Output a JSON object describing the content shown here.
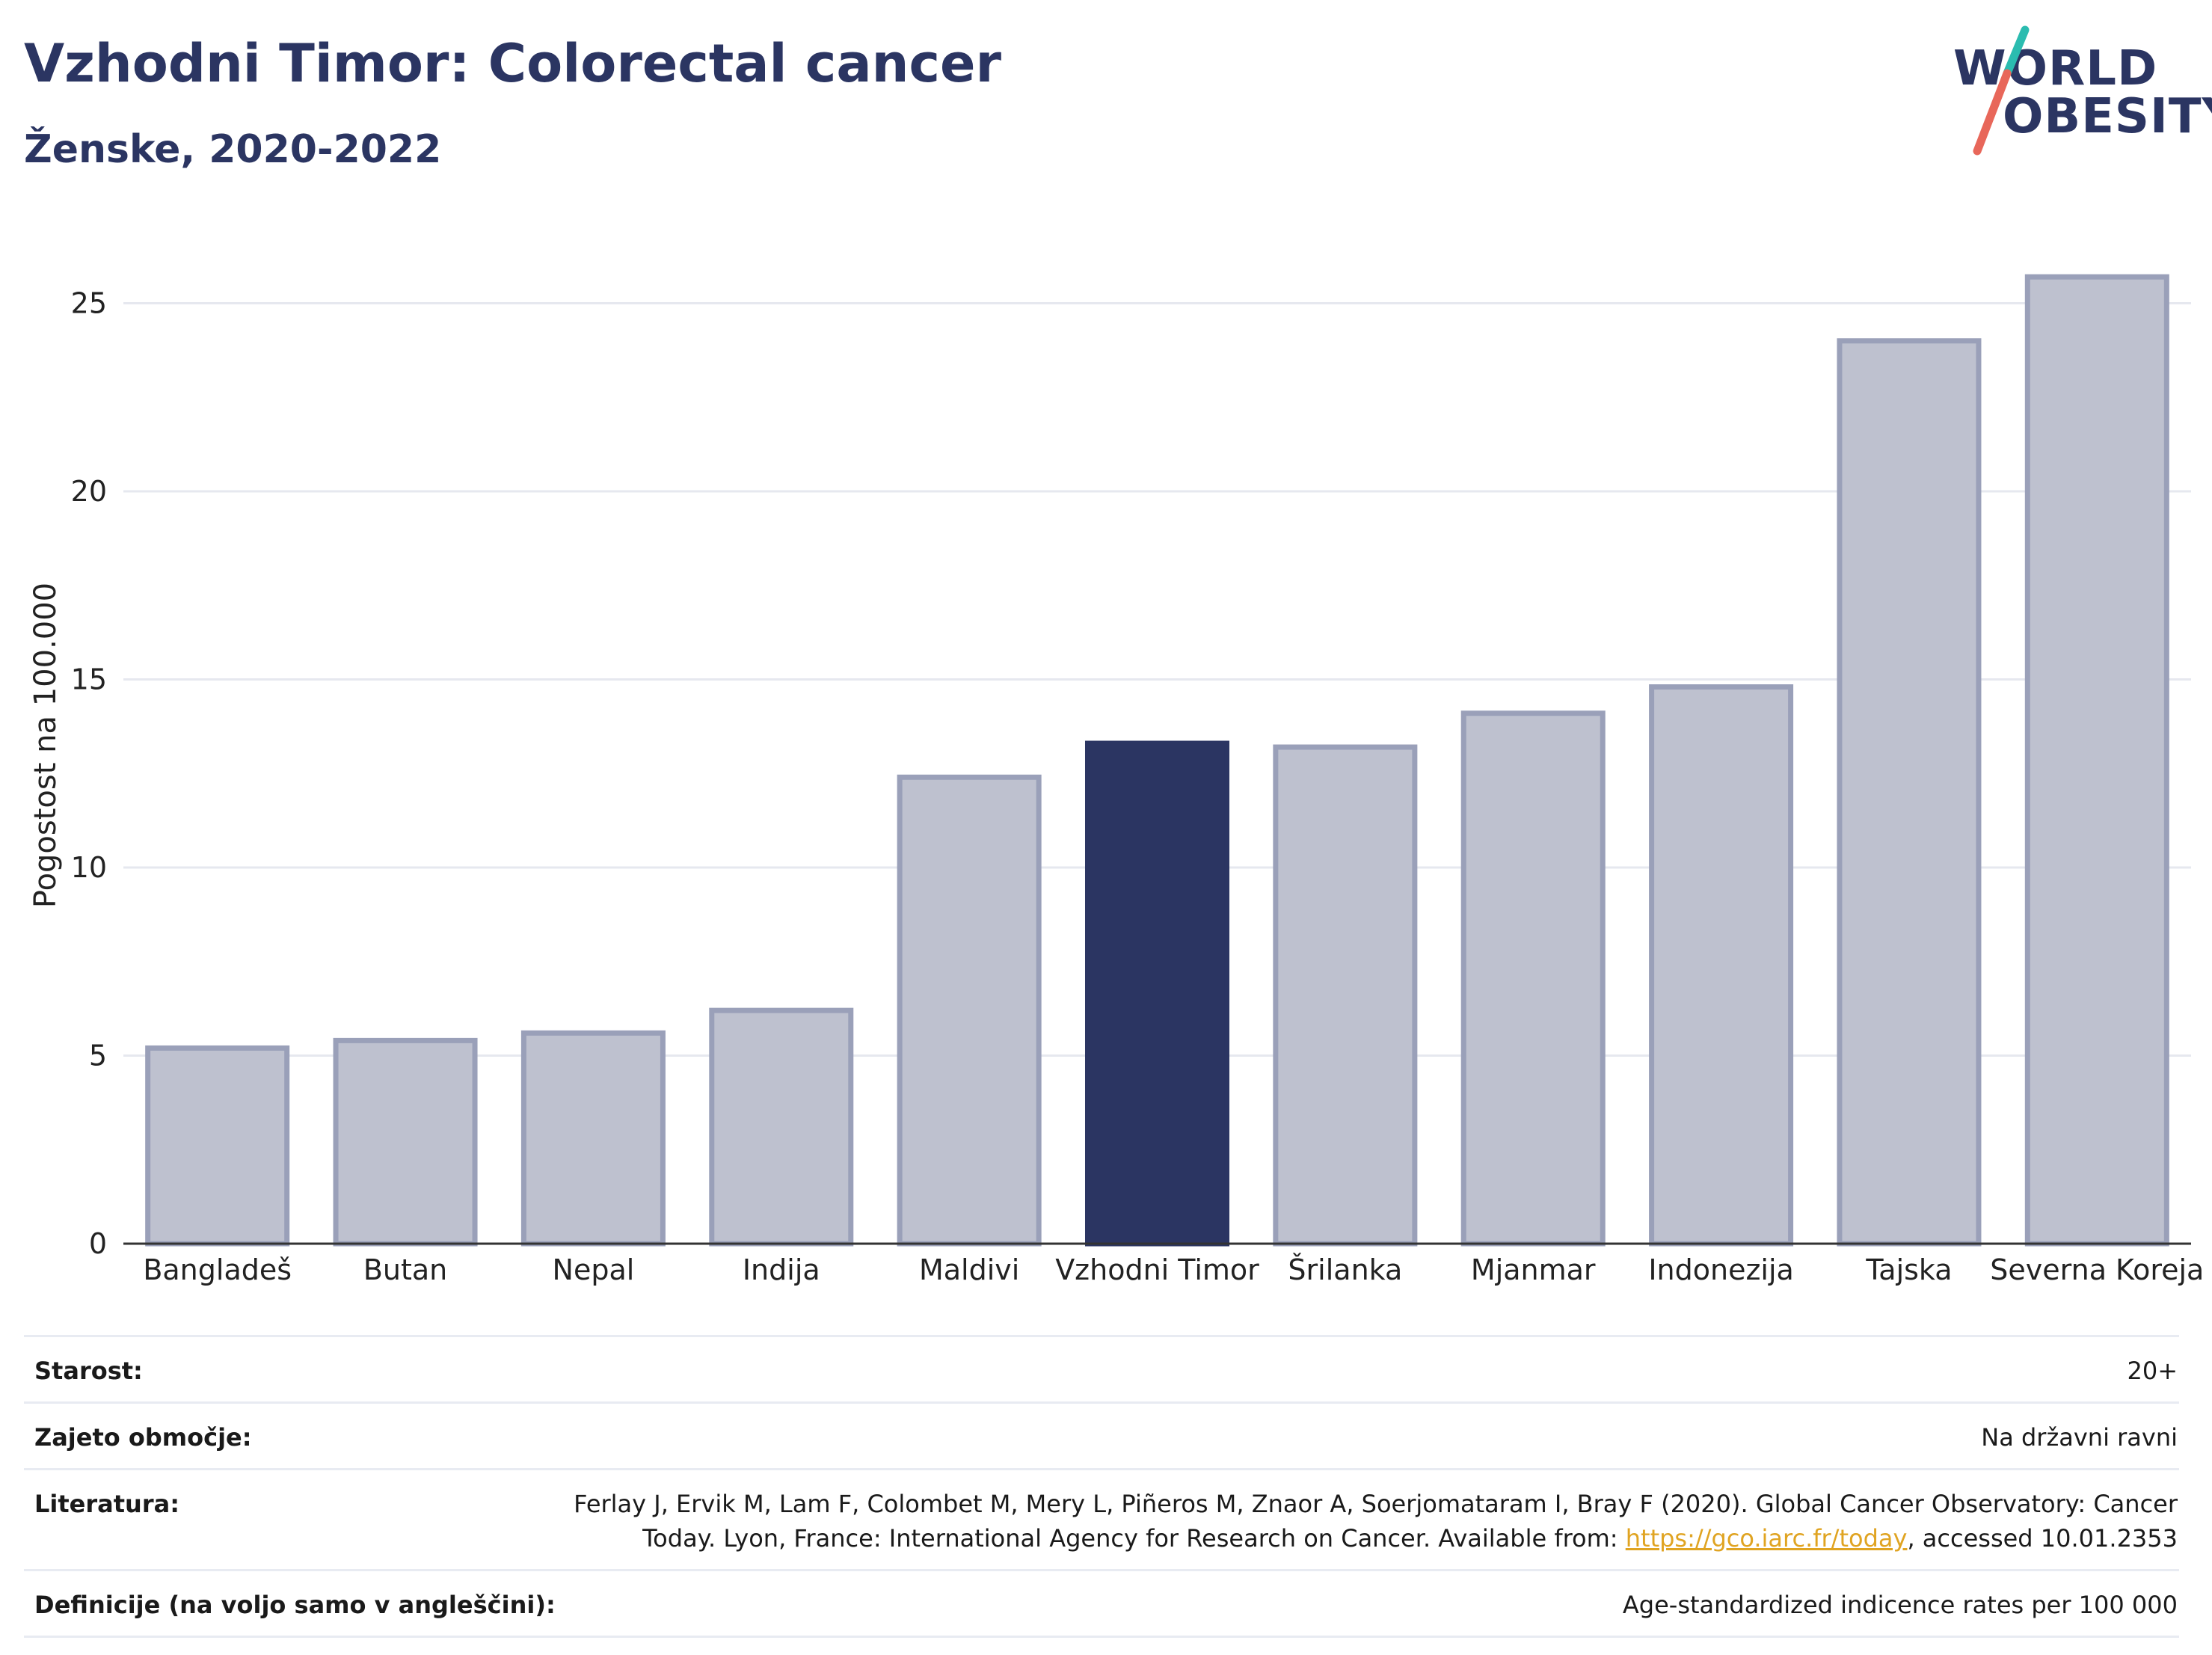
{
  "header": {
    "title": "Vzhodni Timor: Colorectal cancer",
    "subtitle": "Ženske, 2020-2022"
  },
  "logo": {
    "line1": "WORLD",
    "line2": "OBESITY",
    "colors": {
      "text": "#2b3562",
      "slash_top": "#2bbcb0",
      "slash_bottom": "#e8675a"
    }
  },
  "chart_data": {
    "type": "bar",
    "ylabel": "Pogostost na 100.000",
    "xlabel": "",
    "ylim": [
      0,
      26.5
    ],
    "yticks": [
      0,
      5,
      10,
      15,
      20,
      25
    ],
    "grid": true,
    "categories": [
      "Bangladeš",
      "Butan",
      "Nepal",
      "Indija",
      "Maldivi",
      "Vzhodni Timor",
      "Šrilanka",
      "Mjanmar",
      "Indonezija",
      "Tajska",
      "Severna Koreja"
    ],
    "values": [
      5.2,
      5.4,
      5.6,
      6.2,
      12.4,
      13.3,
      13.2,
      14.1,
      14.8,
      24.0,
      25.7
    ],
    "highlight": "Vzhodni Timor",
    "colors": {
      "bar": "#bec1cf",
      "bar_border": "#9aa0b9",
      "highlight": "#2b3562",
      "grid": "#e6e8ef",
      "axis": "#333333"
    }
  },
  "details": [
    {
      "label": "Starost:",
      "value": "20+"
    },
    {
      "label": "Zajeto območje:",
      "value": "Na državni ravni"
    },
    {
      "label": "Literatura:",
      "value_before": "Ferlay J, Ervik M, Lam F, Colombet M, Mery L, Piñeros M, Znaor A, Soerjomataram I, Bray F (2020). Global Cancer Observatory: Cancer Today. Lyon, France: International Agency for Research on Cancer. Available from: ",
      "link": "https://gco.iarc.fr/today",
      "value_after": ", accessed 10.01.2353"
    },
    {
      "label": "Definicije (na voljo samo v angleščini):",
      "value": "Age-standardized indicence rates per 100 000"
    }
  ]
}
